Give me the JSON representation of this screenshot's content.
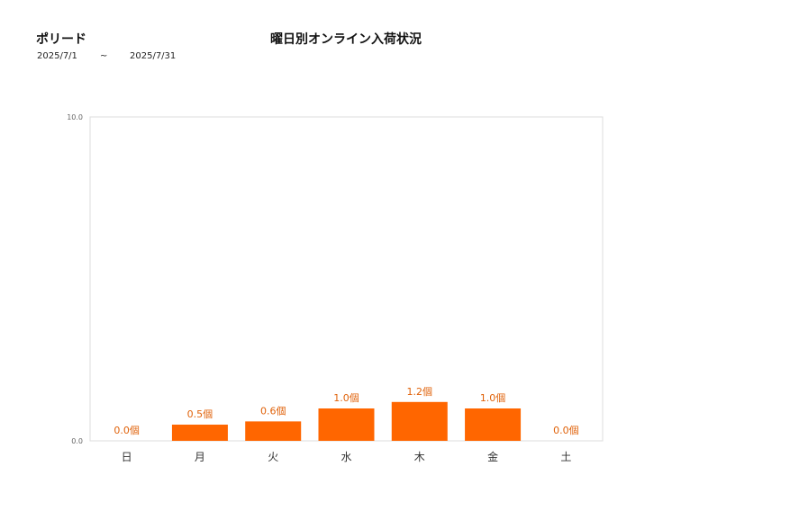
{
  "header": {
    "brand": "ポリード",
    "title": "曜日別オンライン入荷状況",
    "date_start": "2025/7/1",
    "date_separator": "~",
    "date_end": "2025/7/31"
  },
  "chart_data": {
    "type": "bar",
    "categories": [
      "日",
      "月",
      "火",
      "水",
      "木",
      "金",
      "土"
    ],
    "values": [
      0.0,
      0.5,
      0.6,
      1.0,
      1.2,
      1.0,
      0.0
    ],
    "data_labels": [
      "0.0個",
      "0.5個",
      "0.6個",
      "1.0個",
      "1.2個",
      "1.0個",
      "0.0個"
    ],
    "ylim": [
      0,
      10
    ],
    "ytick_labels": [
      "0.0",
      "10.0"
    ],
    "title": "曜日別オンライン入荷状況",
    "xlabel": "",
    "ylabel": "",
    "bar_color": "#ff6600",
    "label_color": "#e0620a",
    "grid": false,
    "legend": "none"
  }
}
